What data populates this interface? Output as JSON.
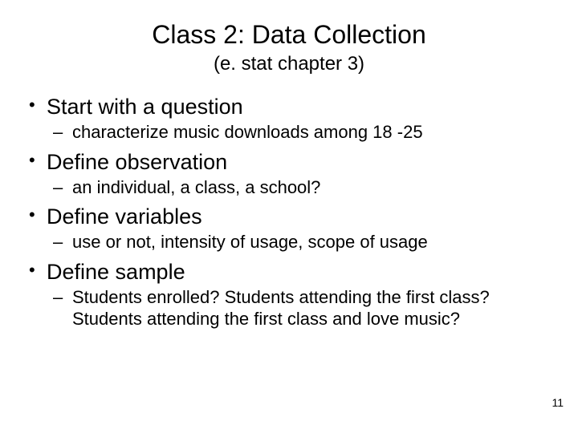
{
  "title": "Class 2: Data Collection",
  "subtitle": "(e. stat chapter 3)",
  "bullets": [
    {
      "main": "Start with a question",
      "sub": "characterize music downloads among 18 -25"
    },
    {
      "main": "Define observation",
      "sub": "an individual, a class, a school?"
    },
    {
      "main": "Define variables",
      "sub": "use or not, intensity of usage, scope of usage"
    },
    {
      "main": "Define sample",
      "sub": "Students enrolled? Students attending the first class? Students attending the first class and love music?"
    }
  ],
  "page_number": "11",
  "styling": {
    "background_color": "#ffffff",
    "text_color": "#000000",
    "title_fontsize": 32,
    "subtitle_fontsize": 24,
    "bullet_fontsize": 27,
    "sub_fontsize": 22,
    "page_number_fontsize": 14,
    "font_family": "Arial"
  }
}
